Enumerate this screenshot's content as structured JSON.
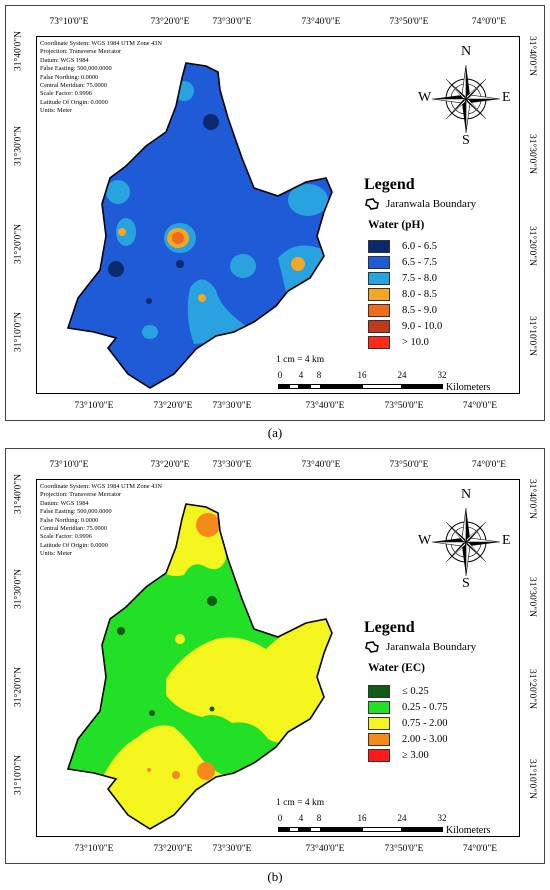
{
  "figures": [
    {
      "caption": "(a)",
      "top_ticks": [
        "73°10'0\"E",
        "73°20'0\"E",
        "73°30'0\"E",
        "73°40'0\"E",
        "73°50'0\"E",
        "74°0'0\"E"
      ],
      "bottom_ticks": [
        "73°10'0\"E",
        "73°20'0\"E",
        "73°30'0\"E",
        "73°40'0\"E",
        "73°50'0\"E",
        "74°0'0\"E"
      ],
      "left_ticks": [
        "31°40'0\"N",
        "31°30'0\"N",
        "31°20'0\"N",
        "31°10'0\"N"
      ],
      "right_ticks": [
        "31°40'0\"N",
        "31°30'0\"N",
        "31°20'0\"N",
        "31°10'0\"N"
      ],
      "meta": [
        "Coordinate System: WGS 1984 UTM Zone 43N",
        "Projection: Transverse Mercator",
        "Datum: WGS 1984",
        "False Easting: 500,000.0000",
        "False Northing: 0.0000",
        "Central Meridian: 75.0000",
        "Scale Factor: 0.9996",
        "Latitude Of Origin: 0.0000",
        "Units: Meter"
      ],
      "compass": {
        "n": "N",
        "s": "S",
        "e": "E",
        "w": "W"
      },
      "legend_title": "Legend",
      "boundary_label": "Jaranwala Boundary",
      "parameter_title": "Water (pH)",
      "classes": [
        {
          "label": "6.0 - 6.5",
          "color": "#0a2a6e"
        },
        {
          "label": "6.5 - 7.5",
          "color": "#1f5bd6"
        },
        {
          "label": "7.5 - 8.0",
          "color": "#29a3e0"
        },
        {
          "label": "8.0 - 8.5",
          "color": "#f5a623"
        },
        {
          "label": "8.5 - 9.0",
          "color": "#f06a1e"
        },
        {
          "label": "9.0 - 10.0",
          "color": "#c0391b"
        },
        {
          "label": "> 10.0",
          "color": "#ff2a1a"
        }
      ],
      "scale_text": "1 cm = 4 km",
      "scale_ticks": [
        "0",
        "4",
        "8",
        "16",
        "24",
        "32"
      ],
      "scale_unit": "Kilometers"
    },
    {
      "caption": "(b)",
      "top_ticks": [
        "73°10'0\"E",
        "73°20'0\"E",
        "73°30'0\"E",
        "73°40'0\"E",
        "73°50'0\"E",
        "74°0'0\"E"
      ],
      "bottom_ticks": [
        "73°10'0\"E",
        "73°20'0\"E",
        "73°30'0\"E",
        "73°40'0\"E",
        "73°50'0\"E",
        "74°0'0\"E"
      ],
      "left_ticks": [
        "31°40'0\"N",
        "31°30'0\"N",
        "31°20'0\"N",
        "31°10'0\"N"
      ],
      "right_ticks": [
        "31°40'0\"N",
        "31°30'0\"N",
        "31°20'0\"N",
        "31°10'0\"N"
      ],
      "meta": [
        "Coordinate System: WGS 1984 UTM Zone 43N",
        "Projection: Transverse Mercator",
        "Datum: WGS 1984",
        "False Easting: 500,000.0000",
        "False Northing: 0.0000",
        "Central Meridian: 75.0000",
        "Scale Factor: 0.9996",
        "Latitude Of Origin: 0.0000",
        "Units: Meter"
      ],
      "compass": {
        "n": "N",
        "s": "S",
        "e": "E",
        "w": "W"
      },
      "legend_title": "Legend",
      "boundary_label": "Jaranwala Boundary",
      "parameter_title": "Water (EC)",
      "classes": [
        {
          "label": "≤ 0.25",
          "color": "#0f5a14"
        },
        {
          "label": "0.25 - 0.75",
          "color": "#22e026"
        },
        {
          "label": "0.75 - 2.00",
          "color": "#f5f51e"
        },
        {
          "label": "2.00 - 3.00",
          "color": "#f58a1a"
        },
        {
          "label": "≥ 3.00",
          "color": "#ff1a1a"
        }
      ],
      "scale_text": "1 cm = 4 km",
      "scale_ticks": [
        "0",
        "4",
        "8",
        "16",
        "24",
        "32"
      ],
      "scale_unit": "Kilometers"
    }
  ]
}
